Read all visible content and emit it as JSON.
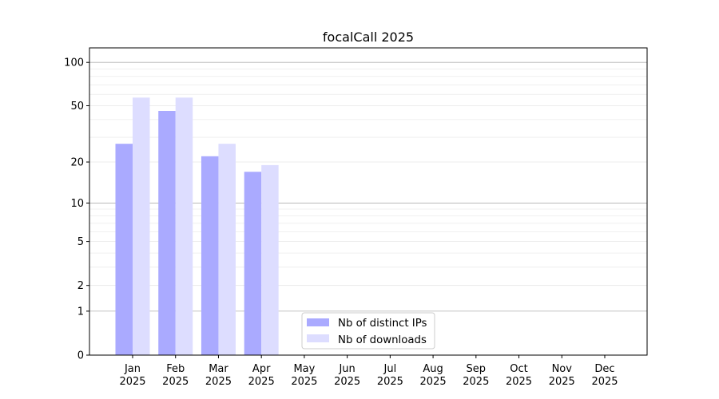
{
  "chart_data": {
    "type": "bar",
    "title": "focalCall 2025",
    "xlabel": "",
    "ylabel": "",
    "y_scale": "symlog",
    "ylim": [
      0,
      127
    ],
    "y_ticks": [
      0,
      1,
      2,
      5,
      10,
      20,
      50,
      100
    ],
    "grid": true,
    "legend_position": "lower-center",
    "categories": [
      [
        "Jan",
        "2025"
      ],
      [
        "Feb",
        "2025"
      ],
      [
        "Mar",
        "2025"
      ],
      [
        "Apr",
        "2025"
      ],
      [
        "May",
        "2025"
      ],
      [
        "Jun",
        "2025"
      ],
      [
        "Jul",
        "2025"
      ],
      [
        "Aug",
        "2025"
      ],
      [
        "Sep",
        "2025"
      ],
      [
        "Oct",
        "2025"
      ],
      [
        "Nov",
        "2025"
      ],
      [
        "Dec",
        "2025"
      ]
    ],
    "series": [
      {
        "name": "Nb of distinct IPs",
        "color": "#aaaaff",
        "values": [
          27,
          46,
          22,
          17,
          0,
          0,
          0,
          0,
          0,
          0,
          0,
          0
        ]
      },
      {
        "name": "Nb of downloads",
        "color": "#ddddff",
        "values": [
          57,
          57,
          27,
          19,
          0,
          0,
          0,
          0,
          0,
          0,
          0,
          0
        ]
      }
    ]
  }
}
